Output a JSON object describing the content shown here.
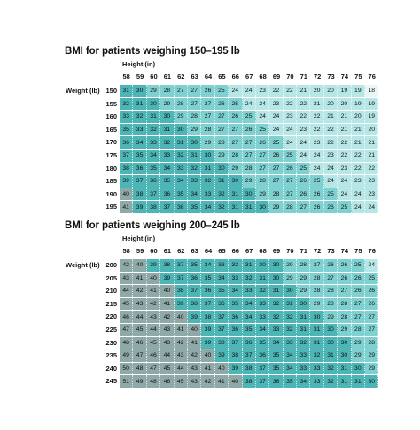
{
  "colors": {
    "under": "#eaf6f6",
    "normal": "#b6e6e6",
    "over": "#7fd0d0",
    "obese": "#4db5b5",
    "severe": "#8fa8a8"
  },
  "sections": [
    {
      "title": "BMI for patients weighing 150–195 lb",
      "height_label": "Height (in)",
      "weight_label": "Weight (lb)",
      "heights": [
        "58",
        "59",
        "60",
        "61",
        "62",
        "63",
        "64",
        "65",
        "66",
        "67",
        "68",
        "69",
        "70",
        "71",
        "72",
        "73",
        "74",
        "75",
        "76"
      ],
      "rows": [
        {
          "weight": "150",
          "values": [
            "31",
            "30",
            "29",
            "28",
            "27",
            "27",
            "26",
            "25",
            "24",
            "24",
            "23",
            "22",
            "22",
            "21",
            "20",
            "20",
            "19",
            "19",
            "18"
          ]
        },
        {
          "weight": "155",
          "values": [
            "32",
            "31",
            "30",
            "29",
            "28",
            "27",
            "27",
            "26",
            "25",
            "24",
            "24",
            "23",
            "22",
            "22",
            "21",
            "20",
            "20",
            "19",
            "19"
          ]
        },
        {
          "weight": "160",
          "values": [
            "33",
            "32",
            "31",
            "30",
            "29",
            "28",
            "27",
            "27",
            "26",
            "25",
            "24",
            "24",
            "23",
            "22",
            "22",
            "21",
            "21",
            "20",
            "19"
          ]
        },
        {
          "weight": "165",
          "values": [
            "35",
            "33",
            "32",
            "31",
            "30",
            "29",
            "28",
            "27",
            "27",
            "26",
            "25",
            "24",
            "24",
            "23",
            "22",
            "22",
            "21",
            "21",
            "20"
          ]
        },
        {
          "weight": "170",
          "values": [
            "36",
            "34",
            "33",
            "32",
            "31",
            "30",
            "29",
            "28",
            "27",
            "27",
            "26",
            "25",
            "24",
            "24",
            "23",
            "22",
            "22",
            "21",
            "21"
          ]
        },
        {
          "weight": "175",
          "values": [
            "37",
            "35",
            "34",
            "33",
            "32",
            "31",
            "30",
            "29",
            "28",
            "27",
            "27",
            "26",
            "25",
            "24",
            "24",
            "23",
            "22",
            "22",
            "21"
          ]
        },
        {
          "weight": "180",
          "values": [
            "38",
            "36",
            "35",
            "34",
            "33",
            "32",
            "31",
            "30",
            "29",
            "28",
            "27",
            "27",
            "26",
            "25",
            "24",
            "24",
            "23",
            "22",
            "22"
          ]
        },
        {
          "weight": "185",
          "values": [
            "39",
            "37",
            "36",
            "35",
            "34",
            "33",
            "32",
            "31",
            "30",
            "29",
            "28",
            "27",
            "27",
            "26",
            "25",
            "24",
            "24",
            "23",
            "23"
          ]
        },
        {
          "weight": "190",
          "values": [
            "40",
            "38",
            "37",
            "36",
            "35",
            "34",
            "33",
            "32",
            "31",
            "30",
            "29",
            "28",
            "27",
            "26",
            "26",
            "25",
            "24",
            "24",
            "23"
          ]
        },
        {
          "weight": "195",
          "values": [
            "41",
            "39",
            "38",
            "37",
            "36",
            "35",
            "34",
            "32",
            "31",
            "31",
            "30",
            "29",
            "28",
            "27",
            "26",
            "26",
            "25",
            "24",
            "24"
          ]
        }
      ]
    },
    {
      "title": "BMI for patients weighing 200–245 lb",
      "height_label": "Height (in)",
      "weight_label": "Weight (lb)",
      "heights": [
        "58",
        "59",
        "60",
        "61",
        "62",
        "63",
        "64",
        "65",
        "66",
        "67",
        "68",
        "69",
        "70",
        "71",
        "72",
        "73",
        "74",
        "75",
        "76"
      ],
      "rows": [
        {
          "weight": "200",
          "values": [
            "42",
            "40",
            "39",
            "38",
            "37",
            "35",
            "34",
            "33",
            "32",
            "31",
            "30",
            "30",
            "29",
            "28",
            "27",
            "26",
            "26",
            "25",
            "24"
          ]
        },
        {
          "weight": "205",
          "values": [
            "43",
            "41",
            "40",
            "39",
            "37",
            "36",
            "35",
            "34",
            "33",
            "32",
            "31",
            "30",
            "29",
            "29",
            "28",
            "27",
            "26",
            "26",
            "25"
          ]
        },
        {
          "weight": "210",
          "values": [
            "44",
            "42",
            "41",
            "40",
            "38",
            "37",
            "36",
            "35",
            "34",
            "33",
            "32",
            "31",
            "30",
            "29",
            "28",
            "28",
            "27",
            "26",
            "26"
          ]
        },
        {
          "weight": "215",
          "values": [
            "45",
            "43",
            "42",
            "41",
            "39",
            "38",
            "37",
            "36",
            "35",
            "34",
            "33",
            "32",
            "31",
            "30",
            "29",
            "28",
            "28",
            "27",
            "26"
          ]
        },
        {
          "weight": "220",
          "values": [
            "46",
            "44",
            "43",
            "42",
            "40",
            "39",
            "38",
            "37",
            "36",
            "34",
            "33",
            "32",
            "32",
            "31",
            "30",
            "29",
            "28",
            "27",
            "27"
          ]
        },
        {
          "weight": "225",
          "values": [
            "47",
            "45",
            "44",
            "43",
            "41",
            "40",
            "39",
            "37",
            "36",
            "35",
            "34",
            "33",
            "32",
            "31",
            "31",
            "30",
            "29",
            "28",
            "27"
          ]
        },
        {
          "weight": "230",
          "values": [
            "48",
            "46",
            "45",
            "43",
            "42",
            "41",
            "39",
            "38",
            "37",
            "36",
            "35",
            "34",
            "33",
            "32",
            "31",
            "30",
            "30",
            "29",
            "28"
          ]
        },
        {
          "weight": "235",
          "values": [
            "49",
            "47",
            "46",
            "44",
            "43",
            "42",
            "40",
            "39",
            "38",
            "37",
            "36",
            "35",
            "34",
            "33",
            "32",
            "31",
            "30",
            "29",
            "29"
          ]
        },
        {
          "weight": "240",
          "values": [
            "50",
            "48",
            "47",
            "45",
            "44",
            "43",
            "41",
            "40",
            "39",
            "38",
            "37",
            "35",
            "34",
            "33",
            "33",
            "32",
            "31",
            "30",
            "29"
          ]
        },
        {
          "weight": "245",
          "values": [
            "51",
            "49",
            "48",
            "46",
            "45",
            "43",
            "42",
            "41",
            "40",
            "38",
            "37",
            "36",
            "35",
            "34",
            "33",
            "32",
            "31",
            "31",
            "30"
          ]
        }
      ]
    }
  ]
}
